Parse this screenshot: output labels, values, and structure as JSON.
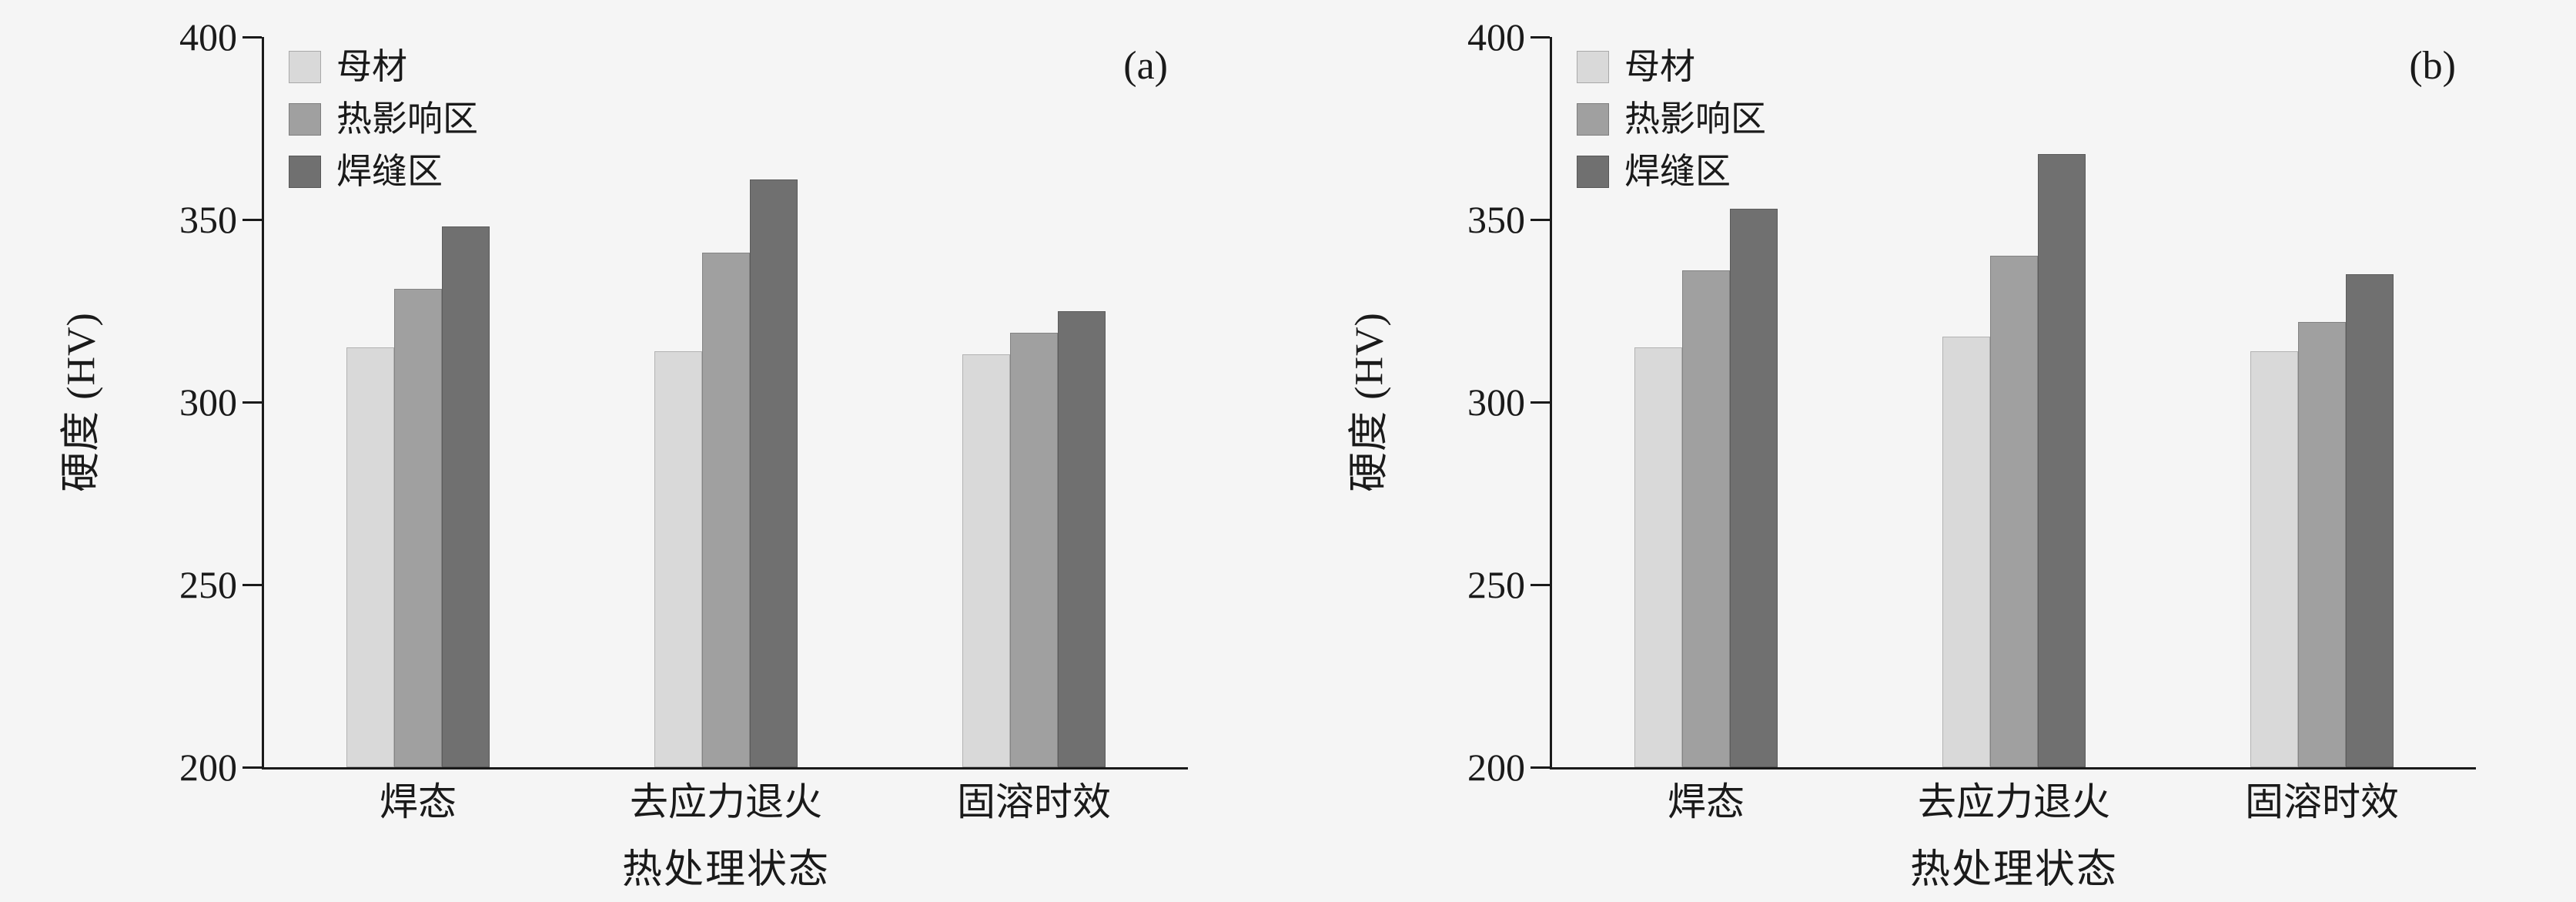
{
  "figure": {
    "background_color": "#f5f5f5",
    "axis_color": "#1a1a1a"
  },
  "chart_data": [
    {
      "type": "bar",
      "panel_label": "(a)",
      "title": "",
      "xlabel": "热处理状态",
      "ylabel": "硬度 (HV)",
      "ylim": [
        200,
        400
      ],
      "yticks": [
        200,
        250,
        300,
        350,
        400
      ],
      "grid": false,
      "legend_position": "top-left",
      "categories": [
        "焊态",
        "去应力退火",
        "固溶时效"
      ],
      "series": [
        {
          "name": "母材",
          "color": "#d9d9d9",
          "values": [
            315,
            314,
            313
          ]
        },
        {
          "name": "热影响区",
          "color": "#a0a0a0",
          "values": [
            331,
            341,
            319
          ]
        },
        {
          "name": "焊缝区",
          "color": "#707070",
          "values": [
            348,
            361,
            325
          ]
        }
      ]
    },
    {
      "type": "bar",
      "panel_label": "(b)",
      "title": "",
      "xlabel": "热处理状态",
      "ylabel": "硬度 (HV)",
      "ylim": [
        200,
        400
      ],
      "yticks": [
        200,
        250,
        300,
        350,
        400
      ],
      "grid": false,
      "legend_position": "top-left",
      "categories": [
        "焊态",
        "去应力退火",
        "固溶时效"
      ],
      "series": [
        {
          "name": "母材",
          "color": "#d9d9d9",
          "values": [
            315,
            318,
            314
          ]
        },
        {
          "name": "热影响区",
          "color": "#a0a0a0",
          "values": [
            336,
            340,
            322
          ]
        },
        {
          "name": "焊缝区",
          "color": "#707070",
          "values": [
            353,
            368,
            335
          ]
        }
      ]
    }
  ]
}
